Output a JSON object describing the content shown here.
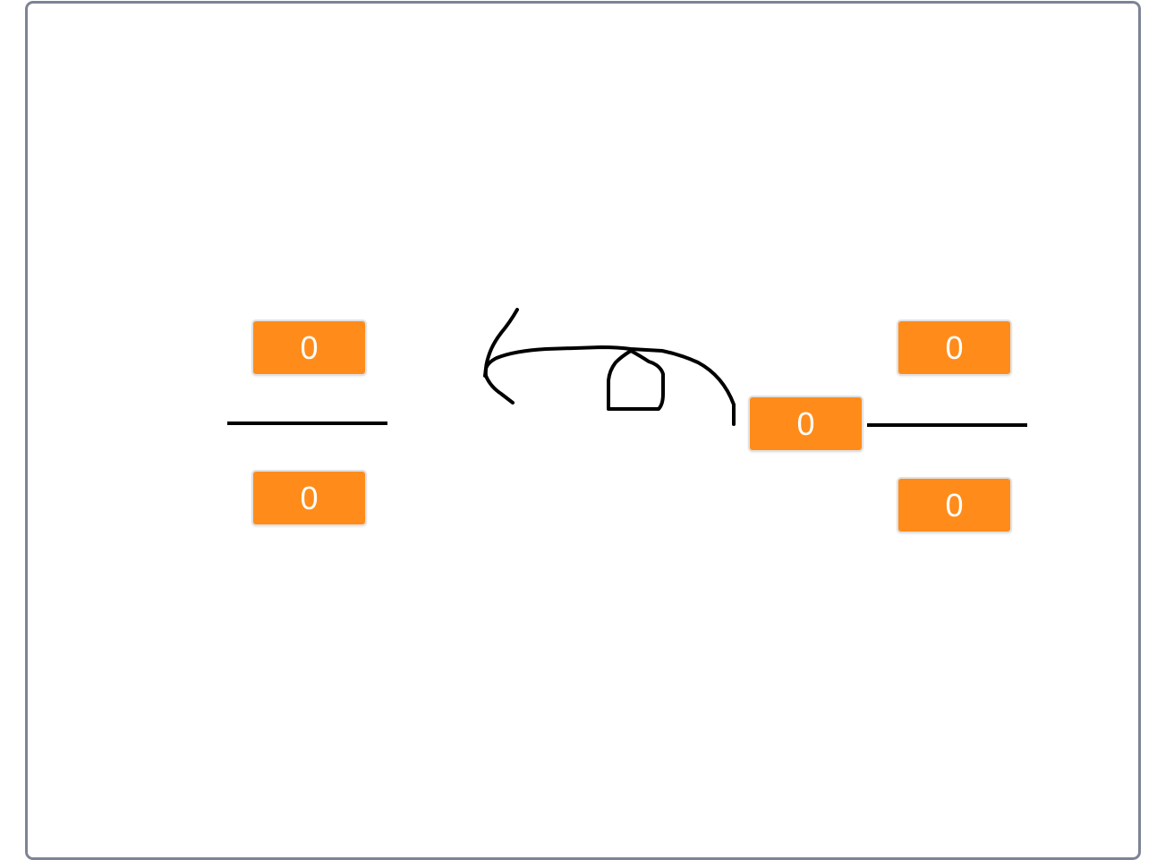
{
  "left_fraction": {
    "numerator": "0",
    "denominator": "0"
  },
  "right_mixed_number": {
    "whole": "0",
    "numerator": "0",
    "denominator": "0"
  },
  "colors": {
    "counter_background": "#ff8c1a",
    "counter_text": "#ffffff",
    "stage_border": "#7d8494",
    "ink": "#000000"
  },
  "icons": [
    "pen-sketch-arrow"
  ]
}
